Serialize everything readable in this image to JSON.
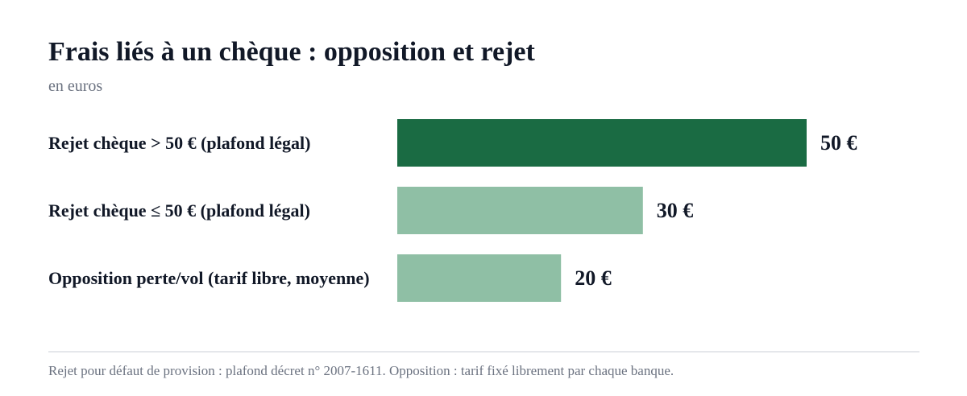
{
  "chart_data": {
    "type": "bar",
    "orientation": "horizontal",
    "title": "Frais liés à un chèque : opposition et rejet",
    "subtitle": "en euros",
    "categories": [
      "Rejet chèque > 50 € (plafond légal)",
      "Rejet chèque ≤ 50 € (plafond légal)",
      "Opposition perte/vol (tarif libre, moyenne)"
    ],
    "values": [
      50,
      30,
      20
    ],
    "value_labels": [
      "50 €",
      "30 €",
      "20 €"
    ],
    "colors": [
      "#1a6b43",
      "#8fbfa5",
      "#8fbfa5"
    ],
    "xlim": [
      0,
      50
    ],
    "grid": false,
    "legend": "none"
  },
  "footnote": "Rejet pour défaut de provision : plafond décret n° 2007-1611. Opposition : tarif fixé librement par chaque banque."
}
